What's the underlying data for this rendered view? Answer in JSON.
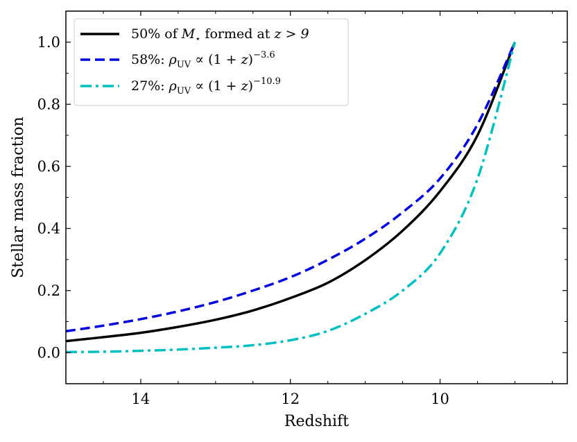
{
  "chart_data": {
    "type": "line",
    "xlabel": "Redshift",
    "ylabel": "Stellar mass fraction",
    "xlim": [
      15,
      8.3
    ],
    "ylim": [
      -0.1,
      1.1
    ],
    "x_ticks": [
      14,
      12,
      10
    ],
    "x_tick_labels": [
      "14",
      "12",
      "10"
    ],
    "y_ticks": [
      0.0,
      0.2,
      0.4,
      0.6,
      0.8,
      1.0
    ],
    "y_tick_labels": [
      "0.0",
      "0.2",
      "0.4",
      "0.6",
      "0.8",
      "1.0"
    ],
    "x_minor_ticks": [
      15,
      14.5,
      13.5,
      13,
      12.5,
      11.5,
      11,
      10.5,
      9.5,
      9,
      8.5
    ],
    "y_minor_ticks": [
      -0.1,
      0.1,
      0.3,
      0.5,
      0.7,
      0.9,
      1.1
    ],
    "legend_position": "top-left",
    "series": [
      {
        "name": "50% of M⋆ formed at z > 9",
        "legend_label": "50% of ",
        "legend_math": "M",
        "legend_sub": "⋆",
        "legend_tail": " formed at ",
        "legend_tail_math": "z > 9",
        "color": "#000000",
        "style": "solid",
        "x": [
          15.0,
          14.5,
          14.0,
          13.5,
          13.0,
          12.5,
          12.0,
          11.5,
          11.0,
          10.5,
          10.0,
          9.5,
          9.0
        ],
        "y": [
          0.037,
          0.05,
          0.064,
          0.083,
          0.106,
          0.136,
          0.176,
          0.225,
          0.298,
          0.393,
          0.52,
          0.7,
          1.0
        ]
      },
      {
        "name": "58%: ρUV ∝ (1+z)^-3.6",
        "legend_label": "58%: ",
        "legend_math": "ρ",
        "legend_sub": "UV",
        "legend_tail": " ∝ (1 + ",
        "legend_tail_math": "z",
        "legend_close": ")",
        "legend_sup": "−3.6",
        "color": "#0000e0",
        "style": "dashed",
        "x": [
          15.0,
          14.5,
          14.0,
          13.5,
          13.0,
          12.5,
          12.0,
          11.5,
          11.0,
          10.5,
          10.0,
          9.5,
          9.0
        ],
        "y": [
          0.069,
          0.087,
          0.108,
          0.133,
          0.163,
          0.2,
          0.243,
          0.299,
          0.367,
          0.452,
          0.561,
          0.735,
          1.0
        ]
      },
      {
        "name": "27%: ρUV ∝ (1+z)^-10.9",
        "legend_label": "27%: ",
        "legend_math": "ρ",
        "legend_sub": "UV",
        "legend_tail": " ∝ (1 + ",
        "legend_tail_math": "z",
        "legend_close": ")",
        "legend_sup": "−10.9",
        "color": "#00c0c0",
        "style": "dashdot",
        "x": [
          15.0,
          14.5,
          14.0,
          13.5,
          13.0,
          12.5,
          12.0,
          11.5,
          11.0,
          10.5,
          10.0,
          9.5,
          9.0
        ],
        "y": [
          0.002,
          0.003,
          0.006,
          0.01,
          0.016,
          0.024,
          0.04,
          0.07,
          0.125,
          0.2,
          0.32,
          0.56,
          1.0
        ]
      }
    ]
  }
}
